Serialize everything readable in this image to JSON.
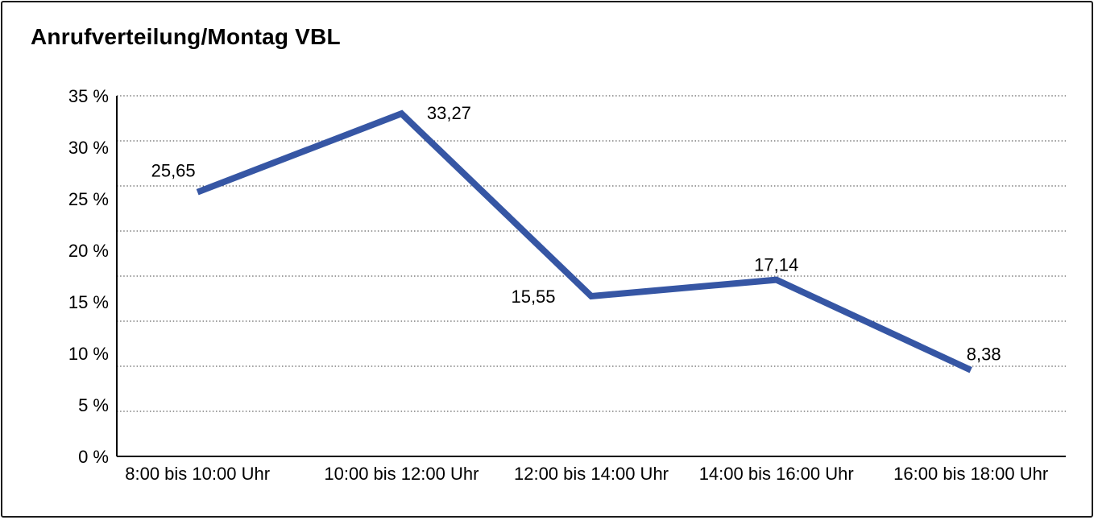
{
  "chart_data": {
    "type": "line",
    "title": "Anrufverteilung/Montag VBL",
    "categories": [
      "8:00 bis 10:00 Uhr",
      "10:00 bis 12:00 Uhr",
      "12:00 bis 14:00 Uhr",
      "14:00 bis 16:00 Uhr",
      "16:00 bis 18:00 Uhr"
    ],
    "values": [
      25.65,
      33.27,
      15.55,
      17.14,
      8.38
    ],
    "value_labels": [
      "25,65",
      "33,27",
      "15,55",
      "17,14",
      "8,38"
    ],
    "xlabel": "",
    "ylabel": "",
    "ylim": [
      0,
      35
    ],
    "ytick_values": [
      35,
      30,
      25,
      20,
      15,
      10,
      5,
      0
    ],
    "ytick_labels": [
      "35 %",
      "30 %",
      "25 %",
      "20 %",
      "15 %",
      "10 %",
      "5 %",
      "0 %"
    ],
    "grid": "horizontal-dotted",
    "legend": "none",
    "line_color": "#3656A4",
    "text_color": "#000000"
  }
}
